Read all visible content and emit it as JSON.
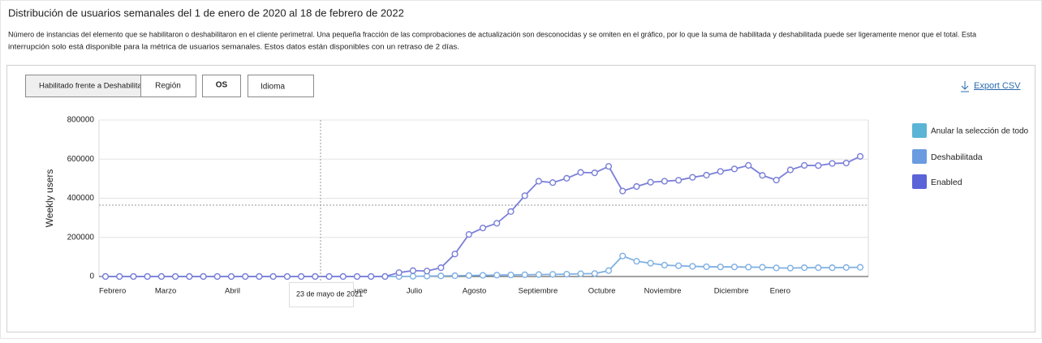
{
  "header": {
    "title": "Distribución de usuarios semanales del 1 de enero de 2020 al 18 de febrero de 2022",
    "description": [
      "Número de instancias del elemento que se habilitaron o deshabilitaron en el cliente perimetral. Una pequeña fracción de las comprobaciones de actualización son desconocidas y se omiten en el gráfico, por lo que la suma de habilitada y deshabilitada puede ser ligeramente menor que el total. Esta",
      "interrupción solo está disponible para la métrica de usuarios semanales. Estos datos están disponibles con un retraso de 2 días."
    ]
  },
  "buttons": [
    "Habilitado frente a Deshabilitado",
    "Región",
    "OS",
    "Idioma"
  ],
  "export": "Export CSV",
  "legend_reset": {
    "label": "Anular la selección de todo",
    "color": "#5ab4d6"
  },
  "tooltip": "23 de mayo de 2021",
  "chart_data": {
    "type": "line",
    "y_label": "Weekly users",
    "categories": [
      "Febrero",
      null,
      null,
      null,
      "Marzo",
      null,
      null,
      null,
      null,
      "Abril",
      null,
      null,
      null,
      null,
      null,
      null,
      null,
      null,
      "June",
      null,
      null,
      null,
      "Julio",
      null,
      null,
      null,
      "Agosto",
      null,
      null,
      null,
      "Septiembre",
      null,
      null,
      null,
      null,
      "Octubre",
      null,
      null,
      null,
      "Noviembre",
      null,
      null,
      null,
      null,
      "Diciembre",
      null,
      null,
      null,
      "Enero",
      null,
      null,
      null,
      null,
      null,
      null
    ],
    "series": [
      {
        "name": "Deshabilitada",
        "color": "#7fb0e3",
        "legend_color": "#6a9be0",
        "values": [
          0,
          0,
          0,
          0,
          0,
          0,
          0,
          0,
          0,
          0,
          0,
          0,
          0,
          0,
          0,
          0,
          0,
          0,
          0,
          0,
          0,
          0,
          1000,
          2000,
          3000,
          4000,
          5000,
          6000,
          7000,
          8000,
          9000,
          10000,
          11000,
          12000,
          14000,
          15000,
          30000,
          105000,
          78000,
          68000,
          58000,
          55000,
          52000,
          50000,
          49000,
          49000,
          48000,
          47000,
          44000,
          43000,
          45000,
          45000,
          45000,
          46000,
          47000
        ]
      },
      {
        "name": "Enabled",
        "color": "#7a7fd8",
        "legend_color": "#5b63d8",
        "values": [
          0,
          0,
          0,
          0,
          0,
          0,
          0,
          0,
          0,
          0,
          0,
          0,
          0,
          0,
          0,
          0,
          0,
          0,
          0,
          0,
          0,
          20000,
          30000,
          28000,
          45000,
          115000,
          215000,
          248000,
          272000,
          332000,
          413000,
          487000,
          480000,
          502000,
          532000,
          530000,
          563000,
          437000,
          460000,
          482000,
          487000,
          492000,
          507000,
          518000,
          537000,
          550000,
          568000,
          517000,
          493000,
          545000,
          568000,
          567000,
          578000,
          580000,
          614000
        ]
      }
    ],
    "ylim": [
      0,
      800000
    ],
    "yticks": [
      0,
      200000,
      400000,
      600000,
      800000
    ],
    "grid": true
  }
}
